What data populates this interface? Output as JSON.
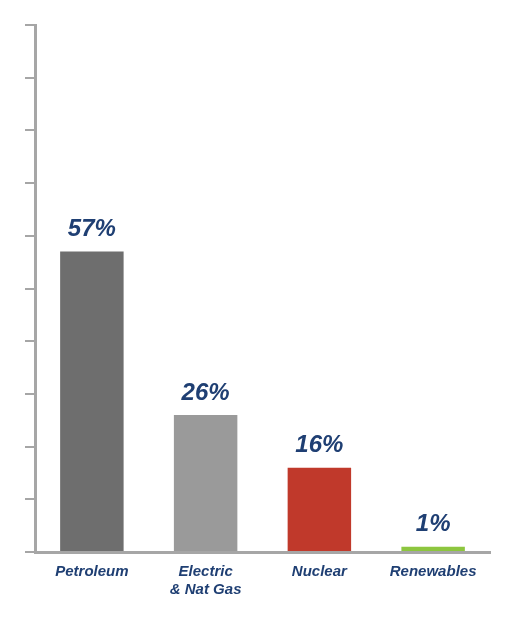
{
  "chart_data": {
    "type": "bar",
    "categories": [
      "Petroleum",
      "Electric & Nat Gas",
      "Nuclear",
      "Renewables"
    ],
    "values": [
      57,
      26,
      16,
      1
    ],
    "value_labels": [
      "57%",
      "26%",
      "16%",
      "1%"
    ],
    "colors": [
      "#6e6e6e",
      "#9a9a9a",
      "#c0392b",
      "#8dc63f"
    ],
    "ylim": [
      0,
      100
    ],
    "yticks": [
      0,
      10,
      20,
      30,
      40,
      50,
      60,
      70,
      80,
      90,
      100
    ],
    "grid": false,
    "data_labels": true,
    "tick_labels": "x"
  }
}
